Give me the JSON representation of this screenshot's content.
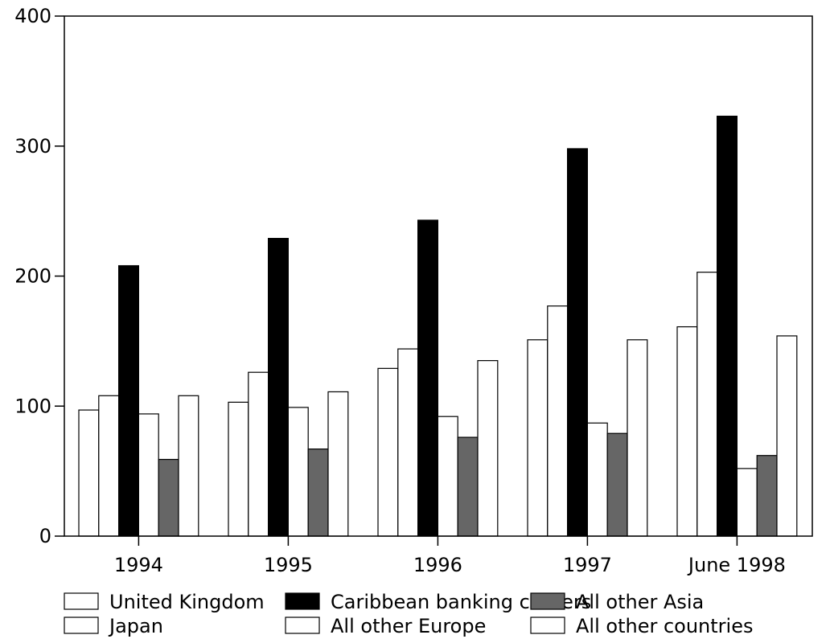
{
  "chart_data": {
    "type": "bar",
    "title": "",
    "xlabel": "",
    "ylabel": "",
    "ylim": [
      0,
      400
    ],
    "yticks": [
      0,
      100,
      200,
      300,
      400
    ],
    "ytick_labels": [
      "0",
      "100",
      "200",
      "300",
      "400"
    ],
    "grid": false,
    "legend_position": "bottom",
    "categories": [
      "1994",
      "1995",
      "1996",
      "1997",
      "June 1998"
    ],
    "series": [
      {
        "name": "United Kingdom",
        "color": "#ffffff",
        "values": [
          97,
          103,
          129,
          151,
          161
        ]
      },
      {
        "name": "Japan",
        "color": "#ffffff",
        "values": [
          108,
          126,
          144,
          177,
          203
        ]
      },
      {
        "name": "Caribbean banking centers",
        "color": "#000000",
        "values": [
          208,
          229,
          243,
          298,
          323
        ]
      },
      {
        "name": "All other Europe",
        "color": "#ffffff",
        "values": [
          94,
          99,
          92,
          87,
          52
        ]
      },
      {
        "name": "All other Asia",
        "color": "#666666",
        "values": [
          59,
          67,
          76,
          79,
          62
        ]
      },
      {
        "name": "All other countries",
        "color": "#ffffff",
        "values": [
          108,
          111,
          135,
          151,
          154
        ]
      }
    ]
  }
}
